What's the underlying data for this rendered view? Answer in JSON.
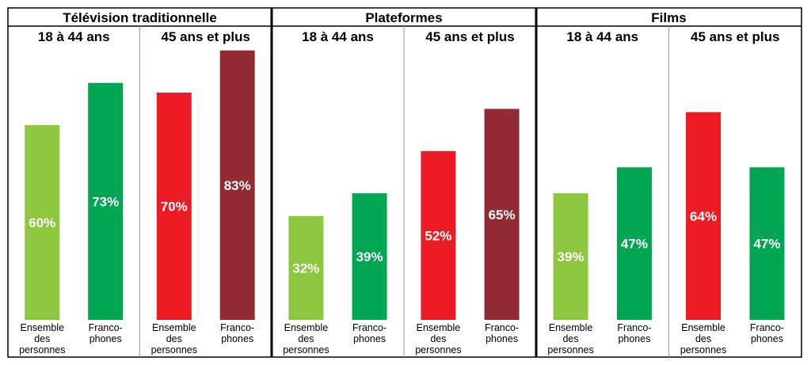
{
  "chart_data": {
    "type": "bar",
    "ylim": [
      0,
      100
    ],
    "colors": {
      "light_green": "#8dc63f",
      "dark_green": "#00a651",
      "red": "#ed1c24",
      "dark_red": "#922b32",
      "border": "#000000",
      "divider": "#9a9a9a"
    },
    "sections": [
      {
        "title": "Télévision traditionnelle",
        "groups": [
          {
            "label": "18 à 44 ans",
            "bars": [
              {
                "category": [
                  "Ensemble",
                  "des",
                  "personnes"
                ],
                "value": 60,
                "value_label": "60%",
                "color": "#8dc63f"
              },
              {
                "category": [
                  "Franco-",
                  "phones"
                ],
                "value": 73,
                "value_label": "73%",
                "color": "#00a651"
              }
            ]
          },
          {
            "label": "45 ans et plus",
            "bars": [
              {
                "category": [
                  "Ensemble",
                  "des",
                  "personnes"
                ],
                "value": 70,
                "value_label": "70%",
                "color": "#ed1c24"
              },
              {
                "category": [
                  "Franco-",
                  "phones"
                ],
                "value": 83,
                "value_label": "83%",
                "color": "#922b32"
              }
            ]
          }
        ]
      },
      {
        "title": "Plateformes",
        "groups": [
          {
            "label": "18 à 44 ans",
            "bars": [
              {
                "category": [
                  "Ensemble",
                  "des",
                  "personnes"
                ],
                "value": 32,
                "value_label": "32%",
                "color": "#8dc63f"
              },
              {
                "category": [
                  "Franco-",
                  "phones"
                ],
                "value": 39,
                "value_label": "39%",
                "color": "#00a651"
              }
            ]
          },
          {
            "label": "45 ans et plus",
            "bars": [
              {
                "category": [
                  "Ensemble",
                  "des",
                  "personnes"
                ],
                "value": 52,
                "value_label": "52%",
                "color": "#ed1c24"
              },
              {
                "category": [
                  "Franco-",
                  "phones"
                ],
                "value": 65,
                "value_label": "65%",
                "color": "#922b32"
              }
            ]
          }
        ]
      },
      {
        "title": "Films",
        "groups": [
          {
            "label": "18 à 44 ans",
            "bars": [
              {
                "category": [
                  "Ensemble",
                  "des",
                  "personnes"
                ],
                "value": 39,
                "value_label": "39%",
                "color": "#8dc63f"
              },
              {
                "category": [
                  "Franco-",
                  "phones"
                ],
                "value": 47,
                "value_label": "47%",
                "color": "#00a651"
              }
            ]
          },
          {
            "label": "45 ans et plus",
            "bars": [
              {
                "category": [
                  "Ensemble",
                  "des",
                  "personnes"
                ],
                "value": 64,
                "value_label": "64%",
                "color": "#ed1c24"
              },
              {
                "category": [
                  "Franco-",
                  "phones"
                ],
                "value": 47,
                "value_label": "47%",
                "color": "#00a651"
              }
            ]
          }
        ]
      }
    ]
  }
}
